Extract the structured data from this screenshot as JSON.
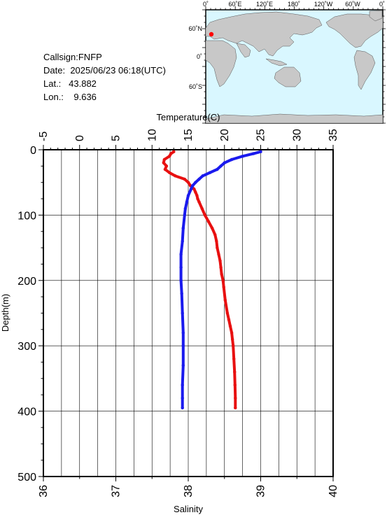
{
  "info": {
    "callsign_label": "Callsign:",
    "callsign": "FNFP",
    "date_label": "Date:",
    "date": "2025/06/23 06:18(UTC)",
    "lat_label": "Lat.:",
    "lat": "43.882",
    "lon_label": "Lon.:",
    "lon": "9.636"
  },
  "map": {
    "top_labels": [
      "0˚",
      "60˚E",
      "120˚E",
      "180˚",
      "120˚W",
      "60˚W",
      "0˚"
    ],
    "left_labels": [
      "60˚N",
      "0˚",
      "60˚S"
    ],
    "ocean_color": "#d9f7ff",
    "land_color": "#c8c8c8",
    "marker_color": "#ff0000"
  },
  "chart_data": {
    "type": "line",
    "title": "",
    "temperature_axis": {
      "label": "Temperature(C)",
      "range": [
        -5,
        35
      ],
      "ticks": [
        "-5",
        "0",
        "5",
        "10",
        "15",
        "20",
        "25",
        "30",
        "35"
      ]
    },
    "salinity_axis": {
      "label": "Salinity",
      "range": [
        36,
        40
      ],
      "ticks": [
        "36",
        "37",
        "38",
        "39",
        "40"
      ]
    },
    "depth_axis": {
      "label": "Depth(m)",
      "range": [
        0,
        500
      ],
      "ticks": [
        "0",
        "100",
        "200",
        "300",
        "400",
        "500"
      ],
      "inverted": true
    },
    "grid": true,
    "series": [
      {
        "axis": "temperature",
        "color": "#e81010",
        "depth": [
          3,
          6,
          10,
          15,
          20,
          25,
          30,
          35,
          40,
          45,
          50,
          55,
          60,
          65,
          70,
          75,
          80,
          90,
          100,
          110,
          120,
          130,
          140,
          150,
          160,
          170,
          180,
          190,
          200,
          210,
          230,
          250,
          260,
          270,
          280,
          290,
          300,
          320,
          340,
          360,
          380,
          395
        ],
        "values": [
          13.0,
          12.6,
          12.4,
          11.7,
          11.6,
          12.0,
          11.8,
          12.4,
          13.2,
          14.5,
          15.0,
          15.3,
          15.8,
          16.0,
          16.2,
          16.3,
          16.5,
          16.9,
          17.3,
          17.8,
          18.3,
          18.7,
          18.9,
          19.0,
          19.2,
          19.4,
          19.5,
          19.6,
          19.8,
          19.9,
          20.1,
          20.4,
          20.6,
          20.8,
          21.0,
          21.1,
          21.2,
          21.3,
          21.4,
          21.45,
          21.5,
          21.5
        ]
      },
      {
        "axis": "salinity",
        "color": "#1a1aee",
        "depth": [
          3,
          6,
          10,
          15,
          20,
          25,
          30,
          35,
          40,
          45,
          50,
          55,
          60,
          70,
          80,
          90,
          100,
          120,
          140,
          160,
          180,
          200,
          220,
          250,
          280,
          300,
          330,
          360,
          380,
          395
        ],
        "values": [
          39.0,
          38.9,
          38.75,
          38.6,
          38.5,
          38.45,
          38.4,
          38.3,
          38.2,
          38.15,
          38.1,
          38.06,
          38.04,
          38.0,
          37.98,
          37.96,
          37.95,
          37.93,
          37.92,
          37.9,
          37.9,
          37.9,
          37.91,
          37.92,
          37.93,
          37.93,
          37.93,
          37.92,
          37.92,
          37.92
        ]
      }
    ]
  }
}
